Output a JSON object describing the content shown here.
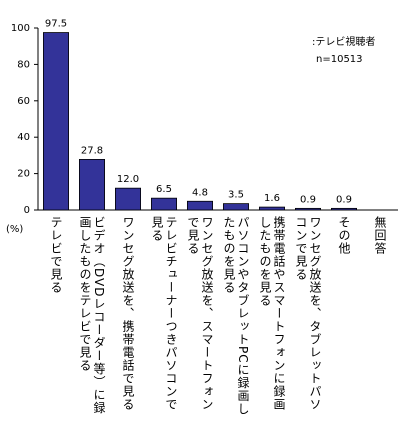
{
  "chart_data": {
    "type": "bar",
    "categories": [
      "テレビで見る",
      "ビデオ（DVDレコーダー等）に録画したものをテレビで見る",
      "ワンセグ放送を、携帯電話で見る",
      "テレビチューナーつきパソコンで見る",
      "ワンセグ放送を、スマートフォンで見る",
      "パソコンやタブレットPCに録画したものを見る",
      "携帯電話やスマートフォンに録画したものを見る",
      "ワンセグ放送を、タブレットパソコンで見る",
      "その他",
      "無回答"
    ],
    "values": [
      97.5,
      27.8,
      12.0,
      6.5,
      4.8,
      3.5,
      1.6,
      0.9,
      0.9,
      null
    ],
    "value_labels": [
      "97.5",
      "27.8",
      "12.0",
      "6.5",
      "4.8",
      "3.5",
      "1.6",
      "0.9",
      "0.9",
      null
    ],
    "color": "#333399",
    "ylim": [
      0,
      100
    ],
    "yticks": [
      0,
      20,
      40,
      60,
      80,
      100
    ],
    "y_unit_label": "(%)",
    "annotations": [
      ":テレビ視聴者",
      "n=10513"
    ]
  }
}
